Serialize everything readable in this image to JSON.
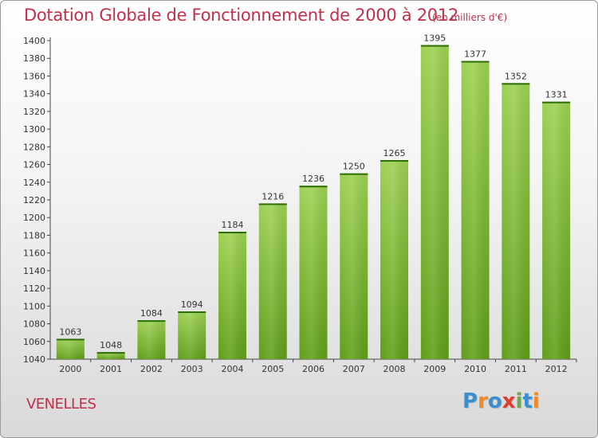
{
  "colors": {
    "title": "#c0304a",
    "bar_top": "#9dd152",
    "bar_bottom": "#5f9e18",
    "axis": "#444444",
    "grid": "#d0d0d0"
  },
  "header": {
    "title": "Dotation Globale de Fonctionnement de 2000 à 2012",
    "subtitle": "(en milliers d'€)"
  },
  "footer": {
    "town": "VENELLES",
    "logo_text": "Proxiti",
    "logo_letters": [
      {
        "ch": "P",
        "color": "#3a8fd0"
      },
      {
        "ch": "r",
        "color": "#f08a24"
      },
      {
        "ch": "o",
        "color": "#3a8fd0"
      },
      {
        "ch": "x",
        "color": "#e23a2e"
      },
      {
        "ch": "i",
        "color": "#6aa84f"
      },
      {
        "ch": "t",
        "color": "#3a8fd0"
      },
      {
        "ch": "i",
        "color": "#f08a24"
      }
    ]
  },
  "chart_data": {
    "type": "bar",
    "title": "Dotation Globale de Fonctionnement de 2000 à 2012",
    "subtitle": "(en milliers d'€)",
    "xlabel": "",
    "ylabel": "",
    "categories": [
      "2000",
      "2001",
      "2002",
      "2003",
      "2004",
      "2005",
      "2006",
      "2007",
      "2008",
      "2009",
      "2010",
      "2011",
      "2012"
    ],
    "values": [
      1063,
      1048,
      1084,
      1094,
      1184,
      1216,
      1236,
      1250,
      1265,
      1395,
      1377,
      1352,
      1331
    ],
    "ylim": [
      1040,
      1400
    ],
    "yticks": [
      1040,
      1060,
      1080,
      1100,
      1120,
      1140,
      1160,
      1180,
      1200,
      1220,
      1240,
      1260,
      1280,
      1300,
      1320,
      1340,
      1360,
      1380,
      1400
    ],
    "grid": false,
    "legend": "none",
    "data_labels": true
  }
}
